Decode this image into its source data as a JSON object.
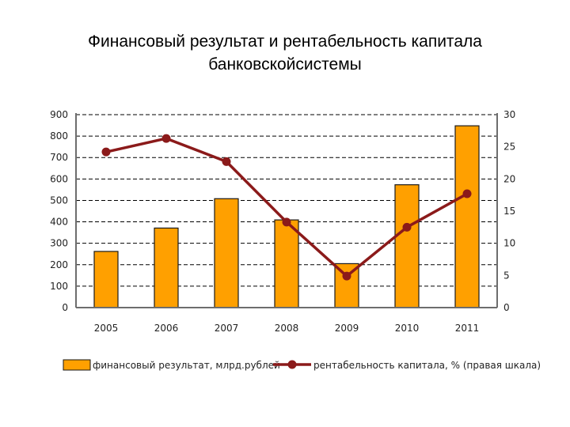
{
  "title": {
    "line1": "Финансовый результат и рентабельность капитала",
    "line2": "банковскойсистемы"
  },
  "colors": {
    "bar_fill": "#FFA000",
    "bar_stroke": "#1a1a1a",
    "line": "#8B1A1A",
    "grid": "#000000",
    "axis_line": "#6d6d6d"
  },
  "chart_data": {
    "type": "bar",
    "categories": [
      "2005",
      "2006",
      "2007",
      "2008",
      "2009",
      "2010",
      "2011"
    ],
    "series": [
      {
        "name": "финансовый результат, млрд.рублей",
        "type": "bar",
        "axis": "left",
        "values": [
          262,
          371,
          508,
          409,
          205,
          573,
          848
        ]
      },
      {
        "name": "рентабельность капитала, % (правая шкала)",
        "type": "line",
        "axis": "right",
        "values": [
          24.2,
          26.3,
          22.7,
          13.3,
          4.9,
          12.5,
          17.7
        ]
      }
    ],
    "left_axis": {
      "ylim": [
        0,
        900
      ],
      "ticks": [
        "0",
        "100",
        "200",
        "300",
        "400",
        "500",
        "600",
        "700",
        "800",
        "900"
      ]
    },
    "right_axis": {
      "ylim": [
        0,
        30
      ],
      "ticks": [
        "0",
        "5",
        "10",
        "15",
        "20",
        "25",
        "30"
      ]
    },
    "grid": "dashed horizontal",
    "legend_position": "bottom"
  }
}
